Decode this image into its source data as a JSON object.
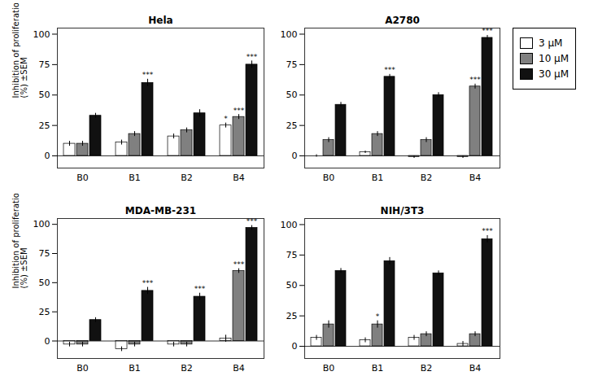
{
  "chart_data": [
    {
      "type": "bar",
      "title": "Hela",
      "categories": [
        "B0",
        "B1",
        "B2",
        "B4"
      ],
      "ylabel": "Inhibition of proliferation\n(%) ±SEM",
      "series": [
        {
          "name": "3 μM",
          "color": "#ffffff",
          "values": [
            10,
            11,
            16,
            25
          ],
          "errors": [
            2,
            2,
            2,
            2
          ],
          "significance": [
            null,
            null,
            null,
            "*"
          ]
        },
        {
          "name": "10 μM",
          "color": "#808080",
          "values": [
            10,
            18,
            21,
            32
          ],
          "errors": [
            2,
            2,
            2,
            2
          ],
          "significance": [
            null,
            null,
            null,
            "***"
          ]
        },
        {
          "name": "30 μM",
          "color": "#111111",
          "values": [
            33,
            60,
            35,
            75
          ],
          "errors": [
            2,
            3,
            3,
            3
          ],
          "significance": [
            null,
            "***",
            null,
            "***"
          ]
        }
      ],
      "ylim": [
        -10,
        105
      ],
      "yticks": [
        0,
        25,
        50,
        75,
        100
      ]
    },
    {
      "type": "bar",
      "title": "A2780",
      "categories": [
        "B0",
        "B1",
        "B2",
        "B4"
      ],
      "series": [
        {
          "name": "3 μM",
          "color": "#ffffff",
          "values": [
            0,
            3,
            -1,
            -1
          ],
          "errors": [
            1,
            1,
            1,
            1
          ],
          "significance": [
            null,
            null,
            null,
            null
          ]
        },
        {
          "name": "10 μM",
          "color": "#808080",
          "values": [
            13,
            18,
            13,
            57
          ],
          "errors": [
            2,
            2,
            2,
            2
          ],
          "significance": [
            null,
            null,
            null,
            "***"
          ]
        },
        {
          "name": "30 μM",
          "color": "#111111",
          "values": [
            42,
            65,
            50,
            97
          ],
          "errors": [
            2,
            2,
            2,
            2
          ],
          "significance": [
            null,
            "***",
            null,
            "***"
          ]
        }
      ],
      "ylim": [
        -10,
        105
      ],
      "yticks": [
        0,
        25,
        50,
        75,
        100
      ],
      "legend": "right"
    },
    {
      "type": "bar",
      "title": "MDA-MB-231",
      "categories": [
        "B0",
        "B1",
        "B2",
        "B4"
      ],
      "ylabel": "Inhibition of proliferation\n(%) ±SEM",
      "series": [
        {
          "name": "3 μM",
          "color": "#ffffff",
          "values": [
            -3,
            -7,
            -3,
            2
          ],
          "errors": [
            2,
            2,
            2,
            3
          ],
          "significance": [
            null,
            null,
            null,
            null
          ]
        },
        {
          "name": "10 μM",
          "color": "#808080",
          "values": [
            -3,
            -3,
            -3,
            60
          ],
          "errors": [
            2,
            2,
            2,
            2
          ],
          "significance": [
            null,
            null,
            null,
            "***"
          ]
        },
        {
          "name": "30 μM",
          "color": "#111111",
          "values": [
            18,
            43,
            38,
            97
          ],
          "errors": [
            2,
            3,
            3,
            2
          ],
          "significance": [
            null,
            "***",
            "***",
            "***"
          ]
        }
      ],
      "ylim": [
        -15,
        105
      ],
      "yticks": [
        0,
        25,
        50,
        75,
        100
      ]
    },
    {
      "type": "bar",
      "title": "NIH/3T3",
      "categories": [
        "B0",
        "B1",
        "B2",
        "B4"
      ],
      "series": [
        {
          "name": "3 μM",
          "color": "#ffffff",
          "values": [
            7,
            5,
            7,
            2
          ],
          "errors": [
            2,
            2,
            2,
            2
          ],
          "significance": [
            null,
            null,
            null,
            null
          ]
        },
        {
          "name": "10 μM",
          "color": "#808080",
          "values": [
            18,
            18,
            10,
            10
          ],
          "errors": [
            3,
            3,
            2,
            2
          ],
          "significance": [
            null,
            "*",
            null,
            null
          ]
        },
        {
          "name": "30 μM",
          "color": "#111111",
          "values": [
            62,
            70,
            60,
            88
          ],
          "errors": [
            2,
            3,
            2,
            3
          ],
          "significance": [
            null,
            null,
            null,
            "***"
          ]
        }
      ],
      "ylim": [
        -10,
        105
      ],
      "yticks": [
        0,
        25,
        50,
        75,
        100
      ]
    }
  ]
}
